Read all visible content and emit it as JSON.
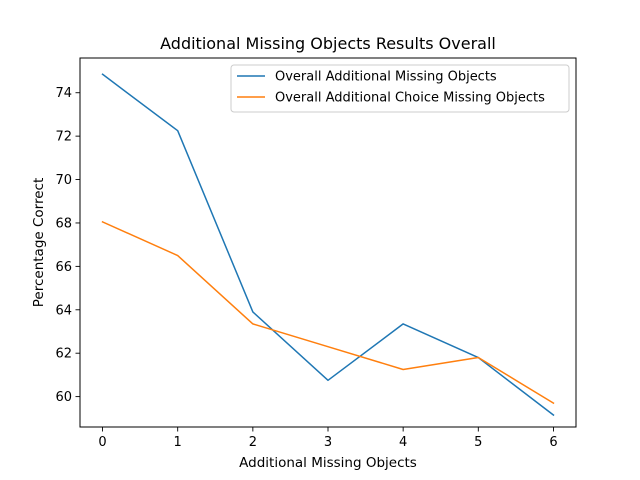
{
  "chart_data": {
    "type": "line",
    "title": "Additional Missing Objects Results Overall",
    "xlabel": "Additional Missing Objects",
    "ylabel": "Percentage Correct",
    "x": [
      0,
      1,
      2,
      3,
      4,
      5,
      6
    ],
    "xlim": [
      -0.3,
      6.3
    ],
    "ylim": [
      58.6,
      75.6
    ],
    "xticks": [
      0,
      1,
      2,
      3,
      4,
      5,
      6
    ],
    "yticks": [
      60,
      62,
      64,
      66,
      68,
      70,
      72,
      74
    ],
    "grid": false,
    "legend_position": "top-right",
    "series": [
      {
        "name": "Overall Additional Missing Objects",
        "color": "#1f77b4",
        "values": [
          74.85,
          72.25,
          63.9,
          60.75,
          63.35,
          61.8,
          59.15
        ]
      },
      {
        "name": "Overall Additional Choice Missing Objects",
        "color": "#ff7f0e",
        "values": [
          68.05,
          66.5,
          63.35,
          62.3,
          61.25,
          61.8,
          59.7
        ]
      }
    ]
  }
}
